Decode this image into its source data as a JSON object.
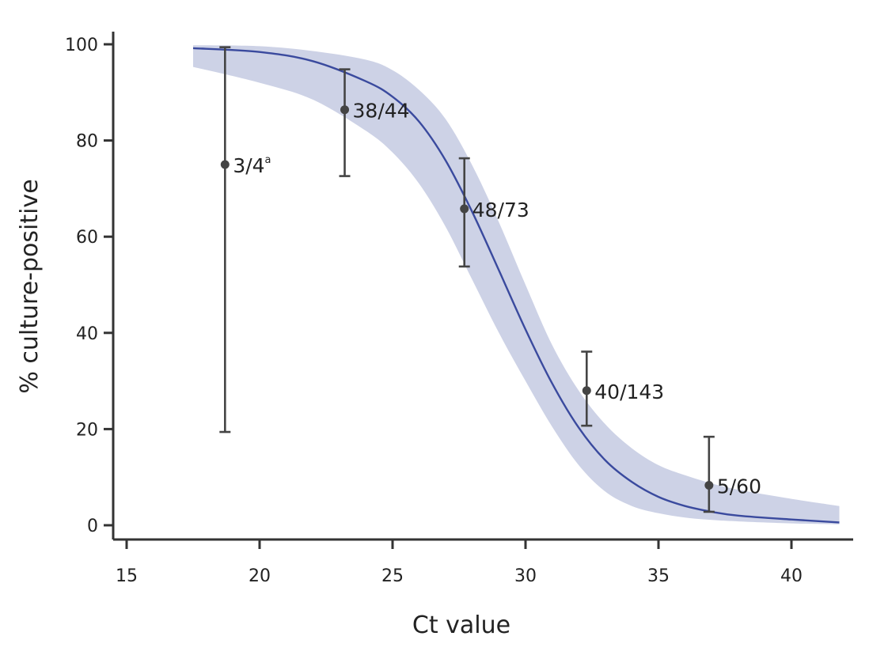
{
  "chart_data": {
    "type": "scatter",
    "xlabel": "Ct value",
    "ylabel": "% culture-positive",
    "xlim": [
      15,
      42.3
    ],
    "ylim": [
      0,
      100
    ],
    "x_ticks": [
      "15",
      "20",
      "25",
      "30",
      "35",
      "40"
    ],
    "y_ticks": [
      "0",
      "20",
      "40",
      "60",
      "80",
      "100"
    ],
    "grid": false,
    "colors": {
      "curve": "#3a4a9e",
      "band": "#cdd2e6",
      "points": "#444444",
      "axis": "#333333"
    },
    "fit": {
      "label": "",
      "x_start": 17.5,
      "x_end": 41.8,
      "curve": [
        {
          "x": 17.5,
          "y": 99.2
        },
        {
          "x": 20,
          "y": 98.4
        },
        {
          "x": 22,
          "y": 96.5
        },
        {
          "x": 24,
          "y": 92.3
        },
        {
          "x": 25,
          "y": 89.1
        },
        {
          "x": 26,
          "y": 83.9
        },
        {
          "x": 27,
          "y": 75.8
        },
        {
          "x": 28,
          "y": 65.1
        },
        {
          "x": 29,
          "y": 53.0
        },
        {
          "x": 30,
          "y": 40.7
        },
        {
          "x": 31,
          "y": 29.5
        },
        {
          "x": 32,
          "y": 20.3
        },
        {
          "x": 33,
          "y": 13.5
        },
        {
          "x": 34,
          "y": 9.0
        },
        {
          "x": 35,
          "y": 5.9
        },
        {
          "x": 36,
          "y": 4.0
        },
        {
          "x": 37,
          "y": 2.8
        },
        {
          "x": 38,
          "y": 2.0
        },
        {
          "x": 40,
          "y": 1.2
        },
        {
          "x": 41.8,
          "y": 0.6
        }
      ],
      "band_upper": [
        {
          "x": 17.5,
          "y": 99.8
        },
        {
          "x": 20,
          "y": 99.6
        },
        {
          "x": 22,
          "y": 98.6
        },
        {
          "x": 24,
          "y": 96.8
        },
        {
          "x": 25,
          "y": 94.6
        },
        {
          "x": 26,
          "y": 90.5
        },
        {
          "x": 27,
          "y": 84.4
        },
        {
          "x": 28,
          "y": 74.8
        },
        {
          "x": 29,
          "y": 63.0
        },
        {
          "x": 30,
          "y": 50.0
        },
        {
          "x": 31,
          "y": 37.5
        },
        {
          "x": 32,
          "y": 28.0
        },
        {
          "x": 33,
          "y": 21.0
        },
        {
          "x": 34,
          "y": 16.0
        },
        {
          "x": 35,
          "y": 12.5
        },
        {
          "x": 36,
          "y": 10.4
        },
        {
          "x": 37,
          "y": 8.7
        },
        {
          "x": 38,
          "y": 7.4
        },
        {
          "x": 40,
          "y": 5.5
        },
        {
          "x": 41.8,
          "y": 4.0
        }
      ],
      "band_lower": [
        {
          "x": 17.5,
          "y": 95.3
        },
        {
          "x": 20,
          "y": 92.0
        },
        {
          "x": 22,
          "y": 88.5
        },
        {
          "x": 24,
          "y": 82.0
        },
        {
          "x": 25,
          "y": 77.5
        },
        {
          "x": 26,
          "y": 71.0
        },
        {
          "x": 27,
          "y": 62.0
        },
        {
          "x": 28,
          "y": 51.0
        },
        {
          "x": 29,
          "y": 40.0
        },
        {
          "x": 30,
          "y": 30.0
        },
        {
          "x": 31,
          "y": 20.5
        },
        {
          "x": 32,
          "y": 12.5
        },
        {
          "x": 33,
          "y": 7.0
        },
        {
          "x": 34,
          "y": 4.0
        },
        {
          "x": 35,
          "y": 2.5
        },
        {
          "x": 36,
          "y": 1.6
        },
        {
          "x": 37,
          "y": 1.1
        },
        {
          "x": 38,
          "y": 0.8
        },
        {
          "x": 40,
          "y": 0.4
        },
        {
          "x": 41.8,
          "y": 0.2
        }
      ]
    },
    "series": [
      {
        "points": [
          {
            "x": 18.7,
            "y": 75.0,
            "ci": [
              19.4,
              99.4
            ],
            "label": "3/4",
            "sup": "a"
          },
          {
            "x": 23.2,
            "y": 86.4,
            "ci": [
              72.6,
              94.8
            ],
            "label": "38/44",
            "sup": ""
          },
          {
            "x": 27.7,
            "y": 65.8,
            "ci": [
              53.8,
              76.3
            ],
            "label": "48/73",
            "sup": ""
          },
          {
            "x": 32.3,
            "y": 28.0,
            "ci": [
              20.7,
              36.1
            ],
            "label": "40/143",
            "sup": ""
          },
          {
            "x": 36.9,
            "y": 8.3,
            "ci": [
              2.8,
              18.4
            ],
            "label": "5/60",
            "sup": ""
          }
        ]
      }
    ]
  }
}
